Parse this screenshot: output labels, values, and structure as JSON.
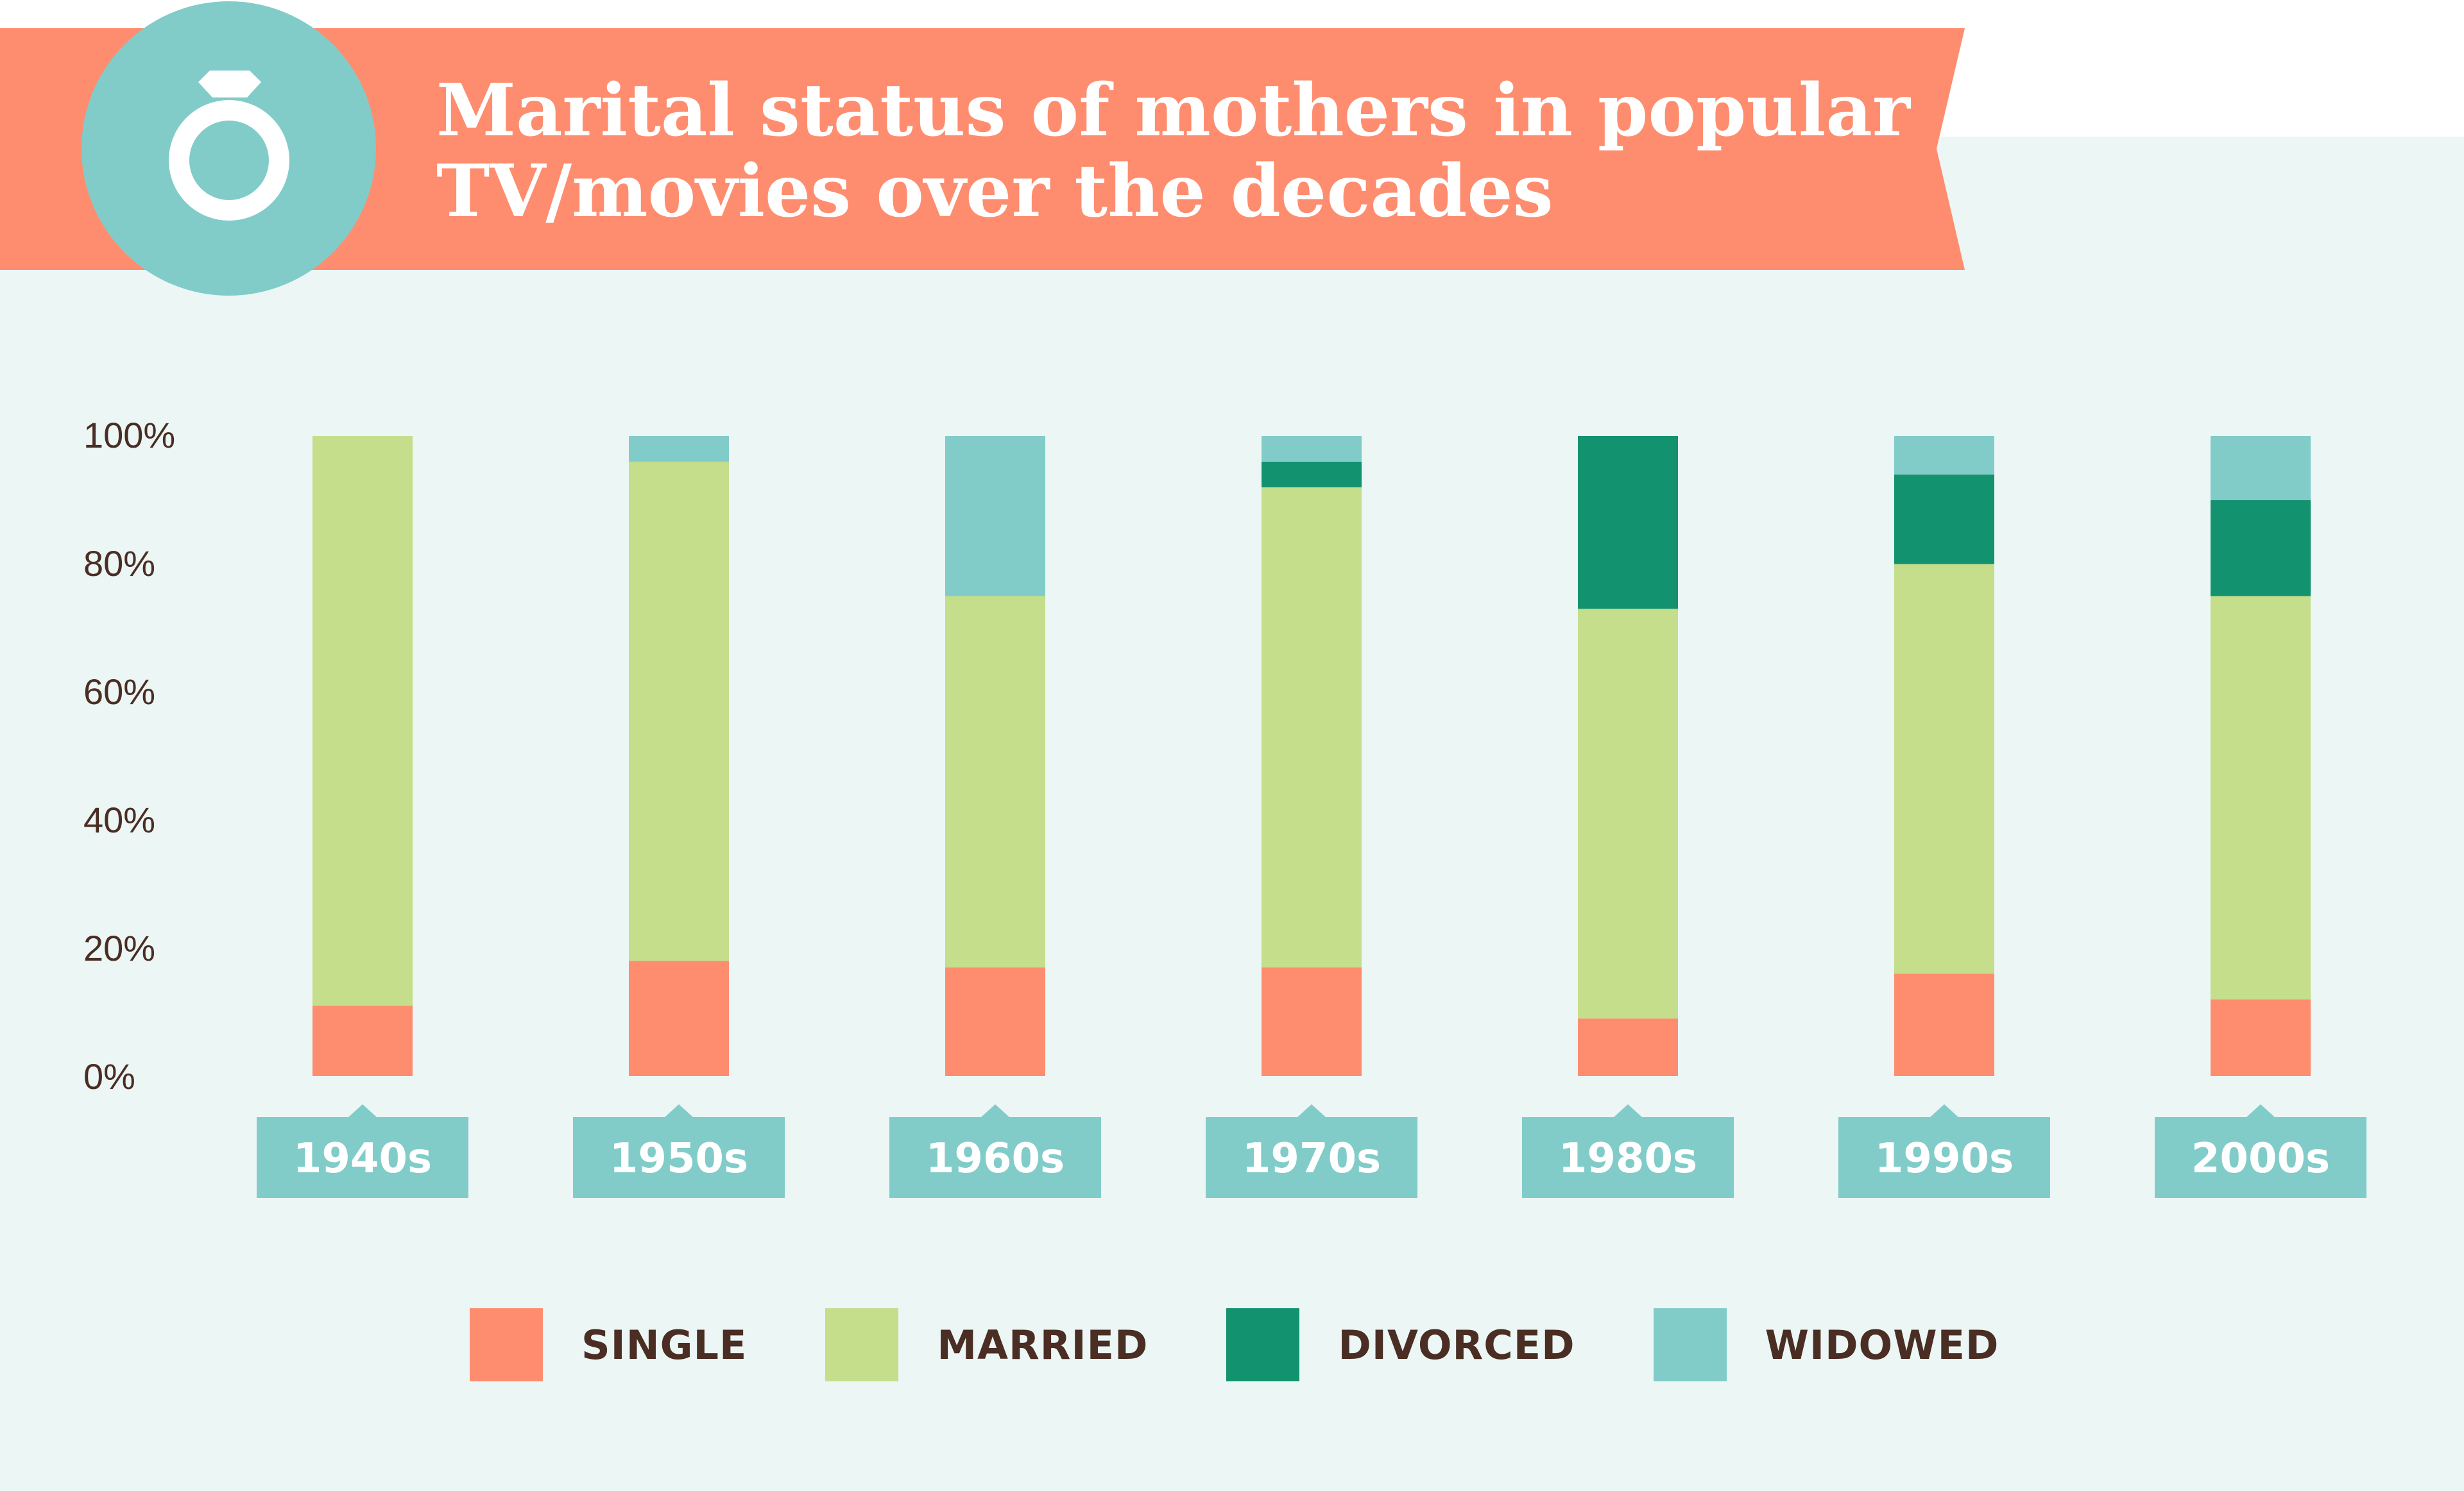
{
  "title_lines": [
    "Marital status of mothers in popular",
    "TV/movies over the decades"
  ],
  "icon": "ring-icon",
  "colors": {
    "banner": "#fe8d6f",
    "panel": "#ebf6f5",
    "single": "#fe8d6f",
    "married": "#c4de8b",
    "divorced": "#13926f",
    "widowed": "#81ccc9",
    "label_box": "#81ccc9",
    "text": "#4a2d23"
  },
  "chart_data": {
    "type": "bar",
    "stacked": true,
    "title": "Marital status of mothers in popular TV/movies over the decades",
    "categories": [
      "1940s",
      "1950s",
      "1960s",
      "1970s",
      "1980s",
      "1990s",
      "2000s"
    ],
    "series": [
      {
        "name": "SINGLE",
        "values": [
          11,
          18,
          17,
          17,
          9,
          16,
          12
        ]
      },
      {
        "name": "MARRIED",
        "values": [
          89,
          78,
          58,
          75,
          64,
          64,
          63
        ]
      },
      {
        "name": "DIVORCED",
        "values": [
          0,
          0,
          0,
          4,
          27,
          14,
          15
        ]
      },
      {
        "name": "WIDOWED",
        "values": [
          0,
          4,
          25,
          4,
          0,
          6,
          10
        ]
      }
    ],
    "y_ticks": [
      "0%",
      "20%",
      "40%",
      "60%",
      "80%",
      "100%"
    ],
    "ylim": [
      0,
      100
    ],
    "grid": false,
    "legend_position": "bottom"
  }
}
